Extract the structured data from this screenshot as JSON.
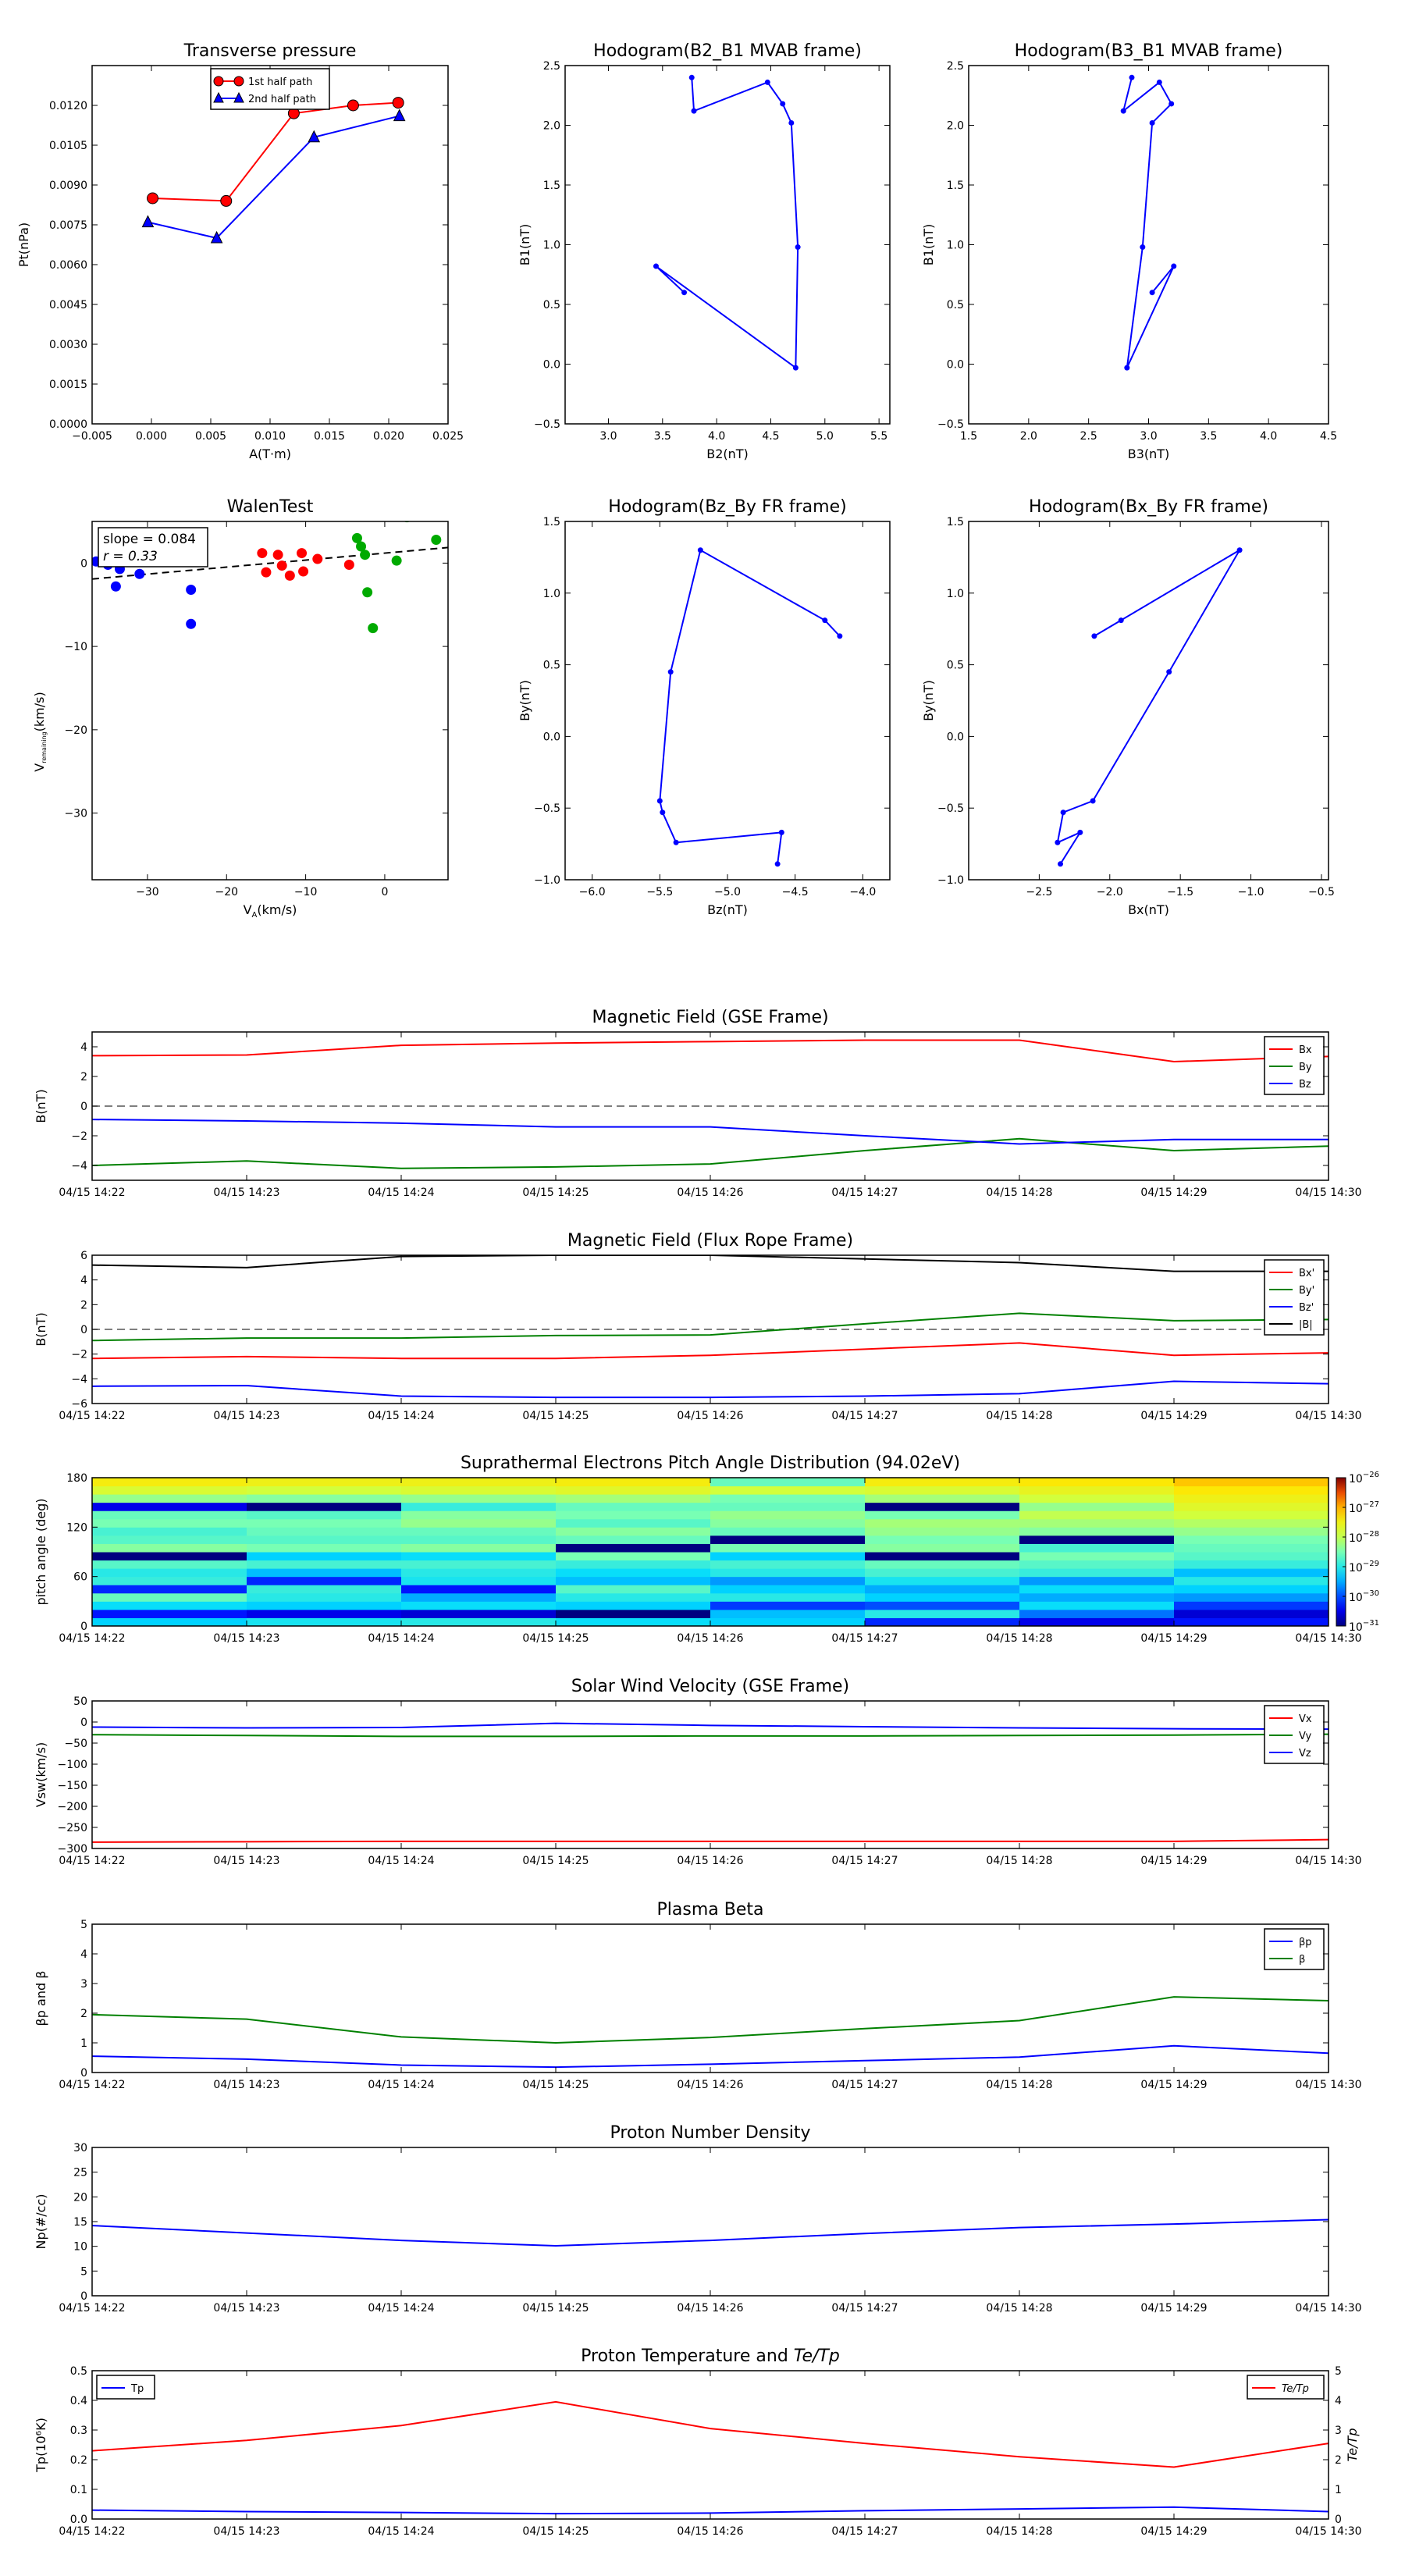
{
  "chart_data": [
    {
      "type": "line",
      "title": "Transverse pressure",
      "xlabel": "A(T·m)",
      "ylabel": "Pt(nPa)",
      "xlim": [
        -0.005,
        0.025
      ],
      "ylim": [
        0.0,
        0.0135
      ],
      "xticks": [
        -0.005,
        0.0,
        0.005,
        0.01,
        0.015,
        0.02,
        0.025
      ],
      "xtick_labels": [
        "−0.005",
        "0.000",
        "0.005",
        "0.010",
        "0.015",
        "0.020",
        "0.025"
      ],
      "yticks": [
        0.0,
        0.0015,
        0.003,
        0.0045,
        0.006,
        0.0075,
        0.009,
        0.0105,
        0.012
      ],
      "ytick_labels": [
        "0.0000",
        "0.0015",
        "0.0030",
        "0.0045",
        "0.0060",
        "0.0075",
        "0.0090",
        "0.0105",
        "0.0120"
      ],
      "legend": "top-center",
      "series": [
        {
          "name": "1st half path",
          "color": "#ff0000",
          "marker": "circle",
          "x": [
            0.0001,
            0.0063,
            0.012,
            0.017,
            0.0208
          ],
          "y": [
            0.0085,
            0.0084,
            0.0117,
            0.012,
            0.0121
          ]
        },
        {
          "name": "2nd half path",
          "color": "#0000ff",
          "marker": "triangle",
          "x": [
            -0.0003,
            0.0055,
            0.0137,
            0.0209
          ],
          "y": [
            0.0076,
            0.007,
            0.0108,
            0.0116
          ]
        }
      ]
    },
    {
      "type": "line",
      "title": "Hodogram(B2_B1 MVAB frame)",
      "xlabel": "B2(nT)",
      "ylabel": "B1(nT)",
      "xlim": [
        2.6,
        5.6
      ],
      "ylim": [
        -0.5,
        2.5
      ],
      "xticks": [
        3.0,
        3.5,
        4.0,
        4.5,
        5.0,
        5.5
      ],
      "xtick_labels": [
        "3.0",
        "3.5",
        "4.0",
        "4.5",
        "5.0",
        "5.5"
      ],
      "yticks": [
        -0.5,
        0.0,
        0.5,
        1.0,
        1.5,
        2.0,
        2.5
      ],
      "ytick_labels": [
        "−0.5",
        "0.0",
        "0.5",
        "1.0",
        "1.5",
        "2.0",
        "2.5"
      ],
      "series": [
        {
          "color": "#0000ff",
          "x": [
            3.77,
            3.79,
            4.47,
            4.61,
            4.69,
            4.75,
            4.73,
            3.44,
            3.7
          ],
          "y": [
            2.4,
            2.12,
            2.36,
            2.18,
            2.02,
            0.98,
            -0.03,
            0.82,
            0.6
          ]
        }
      ]
    },
    {
      "type": "line",
      "title": "Hodogram(B3_B1 MVAB frame)",
      "xlabel": "B3(nT)",
      "ylabel": "B1(nT)",
      "xlim": [
        1.5,
        4.5
      ],
      "ylim": [
        -0.5,
        2.5
      ],
      "xticks": [
        1.5,
        2.0,
        2.5,
        3.0,
        3.5,
        4.0,
        4.5
      ],
      "xtick_labels": [
        "1.5",
        "2.0",
        "2.5",
        "3.0",
        "3.5",
        "4.0",
        "4.5"
      ],
      "yticks": [
        -0.5,
        0.0,
        0.5,
        1.0,
        1.5,
        2.0,
        2.5
      ],
      "ytick_labels": [
        "−0.5",
        "0.0",
        "0.5",
        "1.0",
        "1.5",
        "2.0",
        "2.5"
      ],
      "series": [
        {
          "color": "#0000ff",
          "x": [
            2.86,
            2.79,
            3.09,
            3.19,
            3.03,
            2.95,
            2.82,
            3.21,
            3.03
          ],
          "y": [
            2.4,
            2.12,
            2.36,
            2.18,
            2.02,
            0.98,
            -0.03,
            0.82,
            0.6
          ]
        }
      ]
    },
    {
      "type": "scatter",
      "title": "WalenTest",
      "xlabel": "V",
      "xlabel_sub": "A",
      "xlabel_unit": "(km/s)",
      "ylabel": "V",
      "ylabel_sub": "remaining",
      "ylabel_unit": "(km/s)",
      "xlim": [
        -37,
        8
      ],
      "ylim": [
        -38,
        5
      ],
      "xticks": [
        -30,
        -20,
        -10,
        0
      ],
      "xtick_labels": [
        "−30",
        "−20",
        "−10",
        "0"
      ],
      "yticks": [
        -30,
        -20,
        -10,
        0
      ],
      "ytick_labels": [
        "−30",
        "−20",
        "−10",
        "0"
      ],
      "annotations": [
        "slope = 0.084",
        "r = 0.33"
      ],
      "fit": {
        "slope": 0.084,
        "intercept": 1.2,
        "color": "#000000",
        "style": "dashed"
      },
      "series": [
        {
          "color": "#0000ff",
          "x": [
            -36.5,
            -35,
            -34,
            -33.5,
            -31,
            -28.5,
            -24.5,
            -24.5
          ],
          "y": [
            0.2,
            -0.2,
            -2.8,
            -0.7,
            -1.3,
            0.8,
            -3.2,
            -7.3
          ]
        },
        {
          "color": "#ff0000",
          "x": [
            -15.5,
            -15,
            -13.5,
            -13,
            -12,
            -10.5,
            -10.3,
            -8.5,
            -4.5
          ],
          "y": [
            1.2,
            -1.1,
            1.0,
            -0.3,
            -1.5,
            1.2,
            -1.0,
            0.5,
            -0.2
          ]
        },
        {
          "color": "#00aa00",
          "x": [
            -3.5,
            -3,
            -2.5,
            -2.2,
            -1.5,
            1.5,
            2.8,
            3.2,
            6.5
          ],
          "y": [
            3.0,
            2.0,
            1.0,
            -3.5,
            -7.8,
            0.3,
            5.5,
            7.0,
            2.8
          ]
        }
      ]
    },
    {
      "type": "line",
      "title": "Hodogram(Bz_By FR frame)",
      "xlabel": "Bz(nT)",
      "ylabel": "By(nT)",
      "xlim": [
        -6.2,
        -3.8
      ],
      "ylim": [
        -1.0,
        1.5
      ],
      "xticks": [
        -6.0,
        -5.5,
        -5.0,
        -4.5,
        -4.0
      ],
      "xtick_labels": [
        "−6.0",
        "−5.5",
        "−5.0",
        "−4.5",
        "−4.0"
      ],
      "yticks": [
        -1.0,
        -0.5,
        0.0,
        0.5,
        1.0,
        1.5
      ],
      "ytick_labels": [
        "−1.0",
        "−0.5",
        "0.0",
        "0.5",
        "1.0",
        "1.5"
      ],
      "series": [
        {
          "color": "#0000ff",
          "x": [
            -4.63,
            -4.6,
            -5.38,
            -5.48,
            -5.5,
            -5.42,
            -5.2,
            -4.28,
            -4.17
          ],
          "y": [
            -0.89,
            -0.67,
            -0.74,
            -0.53,
            -0.45,
            0.45,
            1.3,
            0.81,
            0.7
          ]
        }
      ]
    },
    {
      "type": "line",
      "title": "Hodogram(Bx_By FR frame)",
      "xlabel": "Bx(nT)",
      "ylabel": "By(nT)",
      "xlim": [
        -3.0,
        -0.45
      ],
      "ylim": [
        -1.0,
        1.5
      ],
      "xticks": [
        -2.5,
        -2.0,
        -1.5,
        -1.0,
        -0.5
      ],
      "xtick_labels": [
        "−2.5",
        "−2.0",
        "−1.5",
        "−1.0",
        "−0.5"
      ],
      "yticks": [
        -1.0,
        -0.5,
        0.0,
        0.5,
        1.0,
        1.5
      ],
      "ytick_labels": [
        "−1.0",
        "−0.5",
        "0.0",
        "0.5",
        "1.0",
        "1.5"
      ],
      "series": [
        {
          "color": "#0000ff",
          "x": [
            -2.35,
            -2.21,
            -2.37,
            -2.33,
            -2.12,
            -1.58,
            -1.08,
            -2.11,
            -1.92
          ],
          "y": [
            -0.89,
            -0.67,
            -0.74,
            -0.53,
            -0.45,
            0.45,
            1.3,
            0.7,
            0.81
          ]
        }
      ]
    }
  ],
  "timeseries": [
    {
      "title": "Magnetic Field (GSE Frame)",
      "ylabel": "B(nT)",
      "ylim": [
        -5,
        5
      ],
      "yticks": [
        -4,
        -2,
        0,
        2,
        4
      ],
      "ytick_labels": [
        "−4",
        "−2",
        "0",
        "2",
        "4"
      ],
      "zero_line": true,
      "series": [
        {
          "name": "Bx",
          "color": "#ff0000",
          "values": [
            3.4,
            3.45,
            4.1,
            4.25,
            4.35,
            4.45,
            4.45,
            3.0,
            3.35
          ]
        },
        {
          "name": "By",
          "color": "#008000",
          "values": [
            -4.0,
            -3.7,
            -4.2,
            -4.1,
            -3.9,
            -3.0,
            -2.2,
            -3.0,
            -2.7
          ]
        },
        {
          "name": "Bz",
          "color": "#0000ff",
          "values": [
            -0.9,
            -1.0,
            -1.15,
            -1.4,
            -1.4,
            -2.0,
            -2.55,
            -2.25,
            -2.25
          ]
        }
      ]
    },
    {
      "title": "Magnetic Field (Flux Rope Frame)",
      "ylabel": "B(nT)",
      "ylim": [
        -6,
        6
      ],
      "yticks": [
        -6,
        -4,
        -2,
        0,
        2,
        4,
        6
      ],
      "ytick_labels": [
        "−6",
        "−4",
        "−2",
        "0",
        "2",
        "4",
        "6"
      ],
      "zero_line": true,
      "series": [
        {
          "name": "Bx'",
          "color": "#ff0000",
          "values": [
            -2.35,
            -2.2,
            -2.35,
            -2.35,
            -2.1,
            -1.6,
            -1.1,
            -2.1,
            -1.9
          ]
        },
        {
          "name": "By'",
          "color": "#008000",
          "values": [
            -0.9,
            -0.7,
            -0.7,
            -0.5,
            -0.45,
            0.45,
            1.3,
            0.7,
            0.8
          ]
        },
        {
          "name": "Bz'",
          "color": "#0000ff",
          "values": [
            -4.6,
            -4.55,
            -5.4,
            -5.5,
            -5.5,
            -5.4,
            -5.2,
            -4.2,
            -4.4
          ]
        },
        {
          "name": "|B|",
          "color": "#000000",
          "values": [
            5.2,
            5.0,
            5.9,
            6.0,
            6.0,
            5.7,
            5.4,
            4.7,
            4.7
          ]
        }
      ]
    },
    {
      "title": "Suprathermal Electrons Pitch Angle Distribution (94.02eV)",
      "ylabel": "pitch angle (deg)",
      "kind": "heatmap",
      "ylim": [
        0,
        180
      ],
      "yticks": [
        0,
        60,
        120,
        180
      ],
      "ytick_labels": [
        "0",
        "60",
        "120",
        "180"
      ],
      "colorbar_ticks": [
        "10",
        "10",
        "10",
        "10",
        "10",
        "10"
      ],
      "colorbar_exps": [
        "−31",
        "−30",
        "−29",
        "−28",
        "−27",
        "−26"
      ],
      "colorbar_lim": [
        -31,
        -26
      ],
      "bins": 18,
      "columns": [
        [
          -29.3,
          -30.3,
          -29.2,
          -28.6,
          -30.2,
          -28.9,
          -29.0,
          -28.7,
          -31,
          -28.4,
          -28.7,
          -28.8,
          -28.5,
          -28.6,
          -30.5,
          -28.3,
          -27.8,
          -27.4
        ],
        [
          -29.1,
          -30.5,
          -29.3,
          -29.0,
          -28.9,
          -30.2,
          -29.4,
          -28.8,
          -29.3,
          -28.5,
          -28.7,
          -28.6,
          -28.5,
          -28.7,
          -31,
          -28.4,
          -27.9,
          -27.5
        ],
        [
          -29.0,
          -30.6,
          -29.2,
          -29.5,
          -30.3,
          -29.1,
          -29.0,
          -28.8,
          -29.2,
          -28.4,
          -28.7,
          -28.6,
          -28.3,
          -28.4,
          -28.9,
          -28.3,
          -27.8,
          -27.5
        ],
        [
          -29.2,
          -31,
          -29.3,
          -29.0,
          -28.7,
          -29.4,
          -29.2,
          -28.9,
          -28.5,
          -31,
          -28.6,
          -28.4,
          -28.7,
          -28.5,
          -28.6,
          -28.2,
          -27.7,
          -27.4
        ],
        [
          -29.3,
          -29.4,
          -30.1,
          -29.0,
          -29.3,
          -29.6,
          -29.0,
          -28.8,
          -29.3,
          -28.5,
          -31,
          -28.6,
          -28.4,
          -28.3,
          -28.6,
          -28.5,
          -27.9,
          -28.6
        ],
        [
          -30.2,
          -29.0,
          -30.0,
          -29.3,
          -29.5,
          -29.1,
          -28.8,
          -28.6,
          -31,
          -28.4,
          -28.5,
          -28.3,
          -28.2,
          -28.5,
          -31,
          -28.2,
          -27.8,
          -27.4
        ],
        [
          -30.5,
          -29.8,
          -29.2,
          -29.5,
          -29.2,
          -29.6,
          -28.9,
          -28.7,
          -28.5,
          -28.8,
          -31,
          -28.4,
          -28.2,
          -28.0,
          -28.3,
          -27.9,
          -27.6,
          -27.3
        ],
        [
          -30.3,
          -30.6,
          -30.1,
          -29.6,
          -29.3,
          -29.0,
          -29.4,
          -28.9,
          -28.7,
          -28.6,
          -28.5,
          -28.3,
          -28.1,
          -27.9,
          -27.7,
          -27.5,
          -27.3,
          -27.1
        ]
      ]
    },
    {
      "title": "Solar Wind Velocity (GSE Frame)",
      "ylabel": "Vsw(km/s)",
      "ylim": [
        -300,
        50
      ],
      "yticks": [
        -300,
        -250,
        -200,
        -150,
        -100,
        -50,
        0,
        50
      ],
      "ytick_labels": [
        "−300",
        "−250",
        "−200",
        "−150",
        "−100",
        "−50",
        "0",
        "50"
      ],
      "series": [
        {
          "name": "Vx",
          "color": "#ff0000",
          "values": [
            -285,
            -284,
            -283,
            -283,
            -283,
            -283,
            -283,
            -283,
            -279
          ]
        },
        {
          "name": "Vy",
          "color": "#008000",
          "values": [
            -30,
            -32,
            -34,
            -34,
            -33,
            -33,
            -32,
            -31,
            -29
          ]
        },
        {
          "name": "Vz",
          "color": "#0000ff",
          "values": [
            -12,
            -14,
            -13,
            -3,
            -8,
            -11,
            -14,
            -16,
            -17
          ]
        }
      ]
    },
    {
      "title": "Plasma Beta",
      "ylabel": "βp and β",
      "ylim": [
        0,
        5
      ],
      "yticks": [
        0,
        1,
        2,
        3,
        4,
        5
      ],
      "ytick_labels": [
        "0",
        "1",
        "2",
        "3",
        "4",
        "5"
      ],
      "series": [
        {
          "name": "βp",
          "color": "#0000ff",
          "values": [
            0.55,
            0.45,
            0.25,
            0.18,
            0.28,
            0.4,
            0.52,
            0.9,
            0.65
          ]
        },
        {
          "name": "β",
          "color": "#008000",
          "values": [
            1.95,
            1.8,
            1.2,
            1.0,
            1.18,
            1.48,
            1.75,
            2.55,
            2.42
          ]
        }
      ]
    },
    {
      "title": "Proton Number Density",
      "ylabel": "Np(#/cc)",
      "ylim": [
        0,
        30
      ],
      "yticks": [
        0,
        5,
        10,
        15,
        20,
        25,
        30
      ],
      "ytick_labels": [
        "0",
        "5",
        "10",
        "15",
        "20",
        "25",
        "30"
      ],
      "series": [
        {
          "color": "#0000ff",
          "values": [
            14.2,
            12.7,
            11.2,
            10.1,
            11.2,
            12.6,
            13.8,
            14.5,
            15.4
          ]
        }
      ]
    },
    {
      "title": "Proton Temperature and ",
      "title_math": "Te/Tp",
      "ylabel": "Tp(10⁶K)",
      "ylim": [
        0,
        0.5
      ],
      "yticks": [
        0.0,
        0.1,
        0.2,
        0.3,
        0.4,
        0.5
      ],
      "ytick_labels": [
        "0.0",
        "0.1",
        "0.2",
        "0.3",
        "0.4",
        "0.5"
      ],
      "y2label": "Te/Tp",
      "y2lim": [
        0,
        5
      ],
      "y2ticks": [
        0,
        1,
        2,
        3,
        4,
        5
      ],
      "y2tick_labels": [
        "0",
        "1",
        "2",
        "3",
        "4",
        "5"
      ],
      "series": [
        {
          "name": "Tp",
          "color": "#0000ff",
          "axis": "left",
          "values": [
            0.03,
            0.025,
            0.022,
            0.018,
            0.02,
            0.028,
            0.034,
            0.04,
            0.025
          ]
        },
        {
          "name": "Te/Tp",
          "color": "#ff0000",
          "axis": "right",
          "values": [
            2.3,
            2.65,
            3.15,
            3.95,
            3.05,
            2.55,
            2.1,
            1.75,
            2.55
          ]
        }
      ]
    }
  ],
  "time_labels": [
    "04/15 14:22",
    "04/15 14:23",
    "04/15 14:24",
    "04/15 14:25",
    "04/15 14:26",
    "04/15 14:27",
    "04/15 14:28",
    "04/15 14:29",
    "04/15 14:30"
  ]
}
